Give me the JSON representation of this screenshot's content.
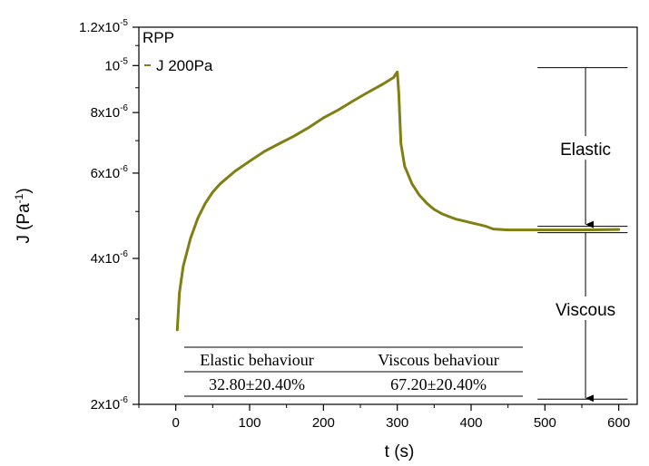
{
  "chart_data": {
    "type": "line",
    "title": "RPP",
    "xlabel": "t (s)",
    "ylabel": "J (Pa-1)",
    "ylabel_parts": {
      "base": "J (Pa",
      "sup": "-1",
      "close": ")"
    },
    "xlim": [
      -50,
      625
    ],
    "ylim": [
      2e-06,
      1.2e-05
    ],
    "y_scale": "log",
    "grid": false,
    "legend_position": "top-left",
    "x_ticks": [
      0,
      100,
      200,
      300,
      400,
      500,
      600
    ],
    "y_ticks": [
      {
        "value": 2e-06,
        "mantissa": "2x10",
        "exp": "-6"
      },
      {
        "value": 4e-06,
        "mantissa": "4x10",
        "exp": "-6"
      },
      {
        "value": 6e-06,
        "mantissa": "6x10",
        "exp": "-6"
      },
      {
        "value": 8e-06,
        "mantissa": "8x10",
        "exp": "-6"
      },
      {
        "value": 1e-05,
        "mantissa": "10",
        "exp": "-5"
      },
      {
        "value": 1.2e-05,
        "mantissa": "1.2x10",
        "exp": "-5"
      }
    ],
    "series": [
      {
        "name": "J 200Pa",
        "color": "#7f7f14",
        "x": [
          2,
          5,
          10,
          20,
          30,
          40,
          50,
          60,
          80,
          100,
          120,
          140,
          160,
          180,
          200,
          220,
          240,
          260,
          280,
          295,
          298,
          300,
          302,
          305,
          310,
          320,
          330,
          340,
          350,
          360,
          370,
          380,
          390,
          400,
          410,
          420,
          430,
          450,
          500,
          550,
          600
        ],
        "y": [
          2.85e-06,
          3.4e-06,
          3.85e-06,
          4.4e-06,
          4.85e-06,
          5.2e-06,
          5.48e-06,
          5.7e-06,
          6.05e-06,
          6.35e-06,
          6.65e-06,
          6.9e-06,
          7.15e-06,
          7.45e-06,
          7.8e-06,
          8.1e-06,
          8.45e-06,
          8.8e-06,
          9.15e-06,
          9.45e-06,
          9.6e-06,
          9.7e-06,
          8.8e-06,
          6.9e-06,
          6.2e-06,
          5.7e-06,
          5.4e-06,
          5.2e-06,
          5.05e-06,
          4.95e-06,
          4.88e-06,
          4.82e-06,
          4.78e-06,
          4.74e-06,
          4.7e-06,
          4.66e-06,
          4.6e-06,
          4.58e-06,
          4.58e-06,
          4.58e-06,
          4.59e-06
        ]
      }
    ],
    "annotations": {
      "elastic_label": "Elastic",
      "viscous_label": "Viscous",
      "top_value": 9.9e-06,
      "mid_value": 4.58e-06,
      "bottom_value": 2.05e-06,
      "arrow_x": 555,
      "line_x_start": 490,
      "line_x_end": 612
    },
    "table": {
      "headers": [
        "Elastic behaviour",
        "Viscous behaviour"
      ],
      "values": [
        "32.80±20.40%",
        "67.20±20.40%"
      ]
    }
  }
}
